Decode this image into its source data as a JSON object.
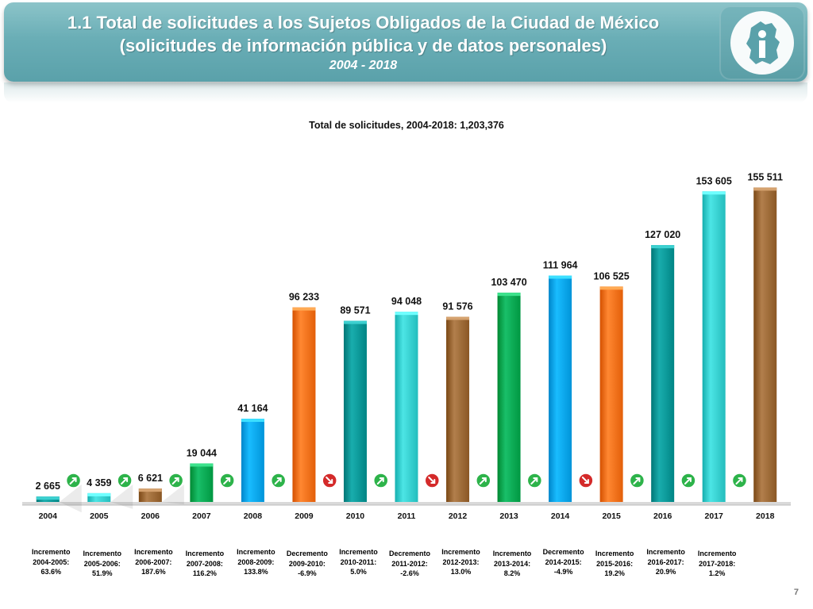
{
  "header": {
    "title_line1": "1.1 Total de solicitudes a los Sujetos Obligados de la Ciudad de México",
    "title_line2": "(solicitudes de información pública y de datos personales)",
    "years": "2004 - 2018"
  },
  "logo": {
    "icon": "cdmx-info-logo-icon"
  },
  "chart_data": {
    "type": "bar",
    "title": "Total de solicitudes, 2004-2018: 1,203,376",
    "categories": [
      "2004",
      "2005",
      "2006",
      "2007",
      "2008",
      "2009",
      "2010",
      "2011",
      "2012",
      "2013",
      "2014",
      "2015",
      "2016",
      "2017",
      "2018"
    ],
    "values": [
      2665,
      4359,
      6621,
      19044,
      41164,
      96233,
      89571,
      94048,
      91576,
      103470,
      111964,
      106525,
      127020,
      153605,
      155511
    ],
    "value_labels": [
      "2 665",
      "4 359",
      "6 621",
      "19 044",
      "41 164",
      "96 233",
      "89 571",
      "94 048",
      "91 576",
      "103 470",
      "111 964",
      "106 525",
      "127 020",
      "153 605",
      "155 511"
    ],
    "colors": [
      "#009494",
      "#33cccc",
      "#996633",
      "#00a650",
      "#00a3e8",
      "#f26e18",
      "#009494",
      "#33cccc",
      "#996633",
      "#00a650",
      "#00a3e8",
      "#f26e18",
      "#009494",
      "#33cccc",
      "#996633"
    ],
    "ylim": [
      0,
      160000
    ],
    "grid": false,
    "trend_arrows": [
      "up",
      "up",
      "up",
      "up",
      "up",
      "down",
      "up",
      "down",
      "up",
      "up",
      "down",
      "up",
      "up",
      "up"
    ]
  },
  "notes": [
    {
      "line1": "Incremento",
      "line2": "2004-2005:",
      "line3": "63.6%"
    },
    {
      "line1": "Incremento",
      "line2": "2005-2006:",
      "line3": "51.9%"
    },
    {
      "line1": "Incremento",
      "line2": "2006-2007:",
      "line3": "187.6%"
    },
    {
      "line1": "Incremento",
      "line2": "2007-2008:",
      "line3": "116.2%"
    },
    {
      "line1": "Incremento",
      "line2": "2008-2009:",
      "line3": "133.8%"
    },
    {
      "line1": "Decremento",
      "line2": "2009-2010:",
      "line3": "-6.9%"
    },
    {
      "line1": "Incremento",
      "line2": "2010-2011:",
      "line3": "5.0%"
    },
    {
      "line1": "Decremento",
      "line2": "2011-2012:",
      "line3": "-2.6%"
    },
    {
      "line1": "Incremento",
      "line2": "2012-2013:",
      "line3": "13.0%"
    },
    {
      "line1": "Incremento",
      "line2": "2013-2014:",
      "line3": "8.2%"
    },
    {
      "line1": "Decremento",
      "line2": "2014-2015:",
      "line3": "-4.9%"
    },
    {
      "line1": "Incremento",
      "line2": "2015-2016:",
      "line3": "19.2%"
    },
    {
      "line1": "Incremento",
      "line2": "2016-2017:",
      "line3": "20.9%"
    },
    {
      "line1": "Incremento",
      "line2": "2017-2018:",
      "line3": "1.2%"
    }
  ],
  "page_number": "7"
}
